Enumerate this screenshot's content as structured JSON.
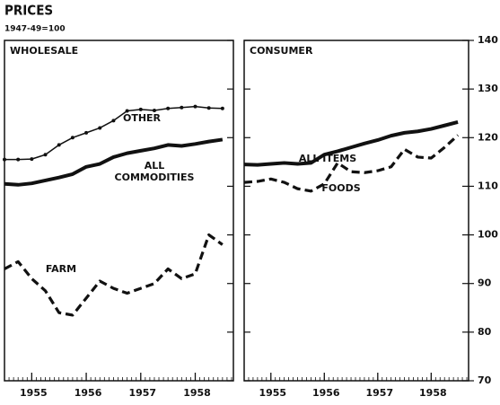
{
  "title": "PRICES",
  "subtitle": "1947-49=100",
  "chart_data": [
    {
      "type": "line",
      "title": "WHOLESALE",
      "x": [
        1954.5,
        1954.75,
        1955,
        1955.25,
        1955.5,
        1955.75,
        1956,
        1956.25,
        1956.5,
        1956.75,
        1957,
        1957.25,
        1957.5,
        1957.75,
        1958,
        1958.25,
        1958.5
      ],
      "xlim": [
        1954.5,
        1958.7
      ],
      "xticks": [
        1955,
        1956,
        1957,
        1958
      ],
      "series": [
        {
          "name": "OTHER",
          "color": "#111111",
          "style": "dotted",
          "values": [
            115.5,
            115.5,
            115.6,
            116.5,
            118.5,
            120,
            121,
            122,
            123.5,
            125.5,
            125.8,
            125.6,
            126,
            126.2,
            126.4,
            126.1,
            126
          ]
        },
        {
          "name": "ALL COMMODITIES",
          "color": "#111111",
          "style": "solid",
          "values": [
            110.5,
            110.3,
            110.6,
            111.2,
            111.8,
            112.5,
            114,
            114.6,
            116,
            116.8,
            117.3,
            117.8,
            118.5,
            118.3,
            118.7,
            119.2,
            119.6
          ]
        },
        {
          "name": "FARM",
          "color": "#111111",
          "style": "dashed",
          "values": [
            93,
            94.5,
            91,
            88.5,
            84,
            83.5,
            87,
            90.5,
            89,
            88,
            89,
            90,
            93,
            91,
            92,
            100,
            98
          ]
        }
      ]
    },
    {
      "type": "line",
      "title": "CONSUMER",
      "x": [
        1954.5,
        1954.75,
        1955,
        1955.25,
        1955.5,
        1955.75,
        1956,
        1956.25,
        1956.5,
        1956.75,
        1957,
        1957.25,
        1957.5,
        1957.75,
        1958,
        1958.25,
        1958.5
      ],
      "xlim": [
        1954.5,
        1958.7
      ],
      "xticks": [
        1955,
        1956,
        1957,
        1958
      ],
      "ylim": [
        70,
        140
      ],
      "yticks": [
        70,
        80,
        90,
        100,
        110,
        120,
        130,
        140
      ],
      "series": [
        {
          "name": "ALL ITEMS",
          "color": "#111111",
          "style": "solid",
          "values": [
            114.5,
            114.4,
            114.6,
            114.8,
            114.6,
            114.8,
            116.5,
            117.2,
            118,
            118.8,
            119.5,
            120.4,
            121,
            121.3,
            121.8,
            122.5,
            123.2
          ]
        },
        {
          "name": "FOODS",
          "color": "#111111",
          "style": "dashed",
          "values": [
            110.8,
            111,
            111.5,
            110.8,
            109.5,
            109,
            110.5,
            114.8,
            113,
            112.8,
            113.2,
            114,
            117.6,
            116,
            115.8,
            118,
            120.5
          ]
        }
      ]
    }
  ]
}
